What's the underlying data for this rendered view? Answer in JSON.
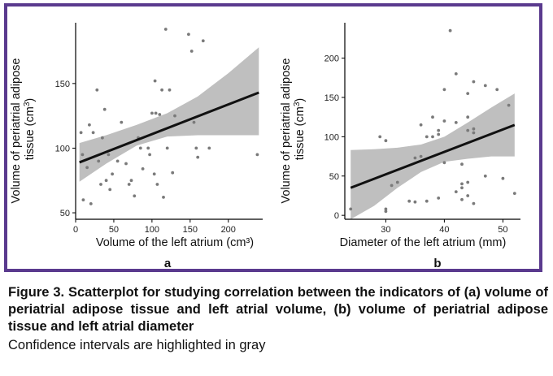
{
  "colors": {
    "frame": "#5a3a8e",
    "band": "#bfbfbf",
    "line": "#111111",
    "points": "#7a7a7a"
  },
  "chart_data": [
    {
      "type": "scatter",
      "panel_label": "a",
      "xlabel": "Volume of the left atrium (cm³)",
      "ylabel": "Volume of periatrial adipose tissue (cm³)",
      "xlim": [
        0,
        245
      ],
      "ylim": [
        45,
        197
      ],
      "x_ticks": [
        0,
        50,
        100,
        150,
        200
      ],
      "y_ticks": [
        50,
        100,
        150
      ],
      "grid": false,
      "points": [
        [
          7,
          112
        ],
        [
          9,
          95
        ],
        [
          10,
          60
        ],
        [
          15,
          85
        ],
        [
          18,
          118
        ],
        [
          20,
          57
        ],
        [
          23,
          112
        ],
        [
          28,
          145
        ],
        [
          30,
          90
        ],
        [
          33,
          72
        ],
        [
          35,
          108
        ],
        [
          38,
          130
        ],
        [
          40,
          75
        ],
        [
          43,
          95
        ],
        [
          45,
          68
        ],
        [
          48,
          80
        ],
        [
          55,
          90
        ],
        [
          60,
          120
        ],
        [
          66,
          88
        ],
        [
          70,
          72
        ],
        [
          73,
          75
        ],
        [
          77,
          63
        ],
        [
          82,
          108
        ],
        [
          85,
          100
        ],
        [
          88,
          84
        ],
        [
          95,
          100
        ],
        [
          97,
          95
        ],
        [
          100,
          127
        ],
        [
          103,
          80
        ],
        [
          104,
          152
        ],
        [
          105,
          127
        ],
        [
          107,
          72
        ],
        [
          110,
          126
        ],
        [
          113,
          145
        ],
        [
          115,
          62
        ],
        [
          118,
          192
        ],
        [
          120,
          100
        ],
        [
          123,
          145
        ],
        [
          127,
          81
        ],
        [
          130,
          125
        ],
        [
          148,
          188
        ],
        [
          152,
          175
        ],
        [
          155,
          120
        ],
        [
          158,
          100
        ],
        [
          160,
          93
        ],
        [
          167,
          183
        ],
        [
          175,
          100
        ],
        [
          238,
          95
        ]
      ],
      "regression": {
        "x": [
          5,
          240
        ],
        "y": [
          89,
          143
        ]
      },
      "ci_band": {
        "x": [
          5,
          40,
          80,
          120,
          160,
          200,
          240
        ],
        "lower": [
          74,
          88,
          102,
          109,
          110,
          110,
          110
        ],
        "upper": [
          104,
          110,
          118,
          127,
          140,
          158,
          178
        ]
      }
    },
    {
      "type": "scatter",
      "panel_label": "b",
      "xlabel": "Diameter of the left atrium (mm)",
      "ylabel": "Volume of periatrial adipose tissue (cm³)",
      "xlim": [
        23,
        53
      ],
      "ylim": [
        -5,
        245
      ],
      "x_ticks": [
        30,
        40,
        50
      ],
      "y_ticks": [
        0,
        50,
        100,
        150,
        200
      ],
      "grid": false,
      "points": [
        [
          24,
          8
        ],
        [
          29,
          100
        ],
        [
          30,
          95
        ],
        [
          30,
          8
        ],
        [
          30,
          5
        ],
        [
          31,
          38
        ],
        [
          32,
          42
        ],
        [
          34,
          18
        ],
        [
          35,
          17
        ],
        [
          35,
          73
        ],
        [
          36,
          75
        ],
        [
          36,
          115
        ],
        [
          37,
          18
        ],
        [
          37,
          100
        ],
        [
          38,
          125
        ],
        [
          38,
          100
        ],
        [
          39,
          108
        ],
        [
          39,
          103
        ],
        [
          39,
          22
        ],
        [
          40,
          67
        ],
        [
          40,
          160
        ],
        [
          40,
          120
        ],
        [
          41,
          235
        ],
        [
          42,
          180
        ],
        [
          42,
          30
        ],
        [
          42,
          118
        ],
        [
          43,
          65
        ],
        [
          43,
          40
        ],
        [
          43,
          35
        ],
        [
          43,
          20
        ],
        [
          44,
          42
        ],
        [
          44,
          155
        ],
        [
          44,
          125
        ],
        [
          44,
          108
        ],
        [
          44,
          25
        ],
        [
          45,
          170
        ],
        [
          45,
          110
        ],
        [
          45,
          105
        ],
        [
          45,
          15
        ],
        [
          47,
          165
        ],
        [
          47,
          50
        ],
        [
          49,
          160
        ],
        [
          50,
          47
        ],
        [
          51,
          140
        ],
        [
          52,
          28
        ]
      ],
      "regression": {
        "x": [
          24,
          52
        ],
        "y": [
          35,
          115
        ]
      },
      "ci_band": {
        "x": [
          24,
          28,
          32,
          36,
          40,
          44,
          48,
          52
        ],
        "lower": [
          -15,
          12,
          35,
          55,
          68,
          72,
          75,
          75
        ],
        "upper": [
          83,
          84,
          86,
          90,
          100,
          118,
          137,
          155
        ]
      }
    }
  ],
  "caption": {
    "main": "Figure 3. Scatterplot for studying correlation between the indicators of (a) volume of periatrial adipose tissue and left atrial volume, (b) volume of periatrial adipose tissue and left atrial diameter",
    "note": "Confidence intervals are highlighted in gray"
  }
}
